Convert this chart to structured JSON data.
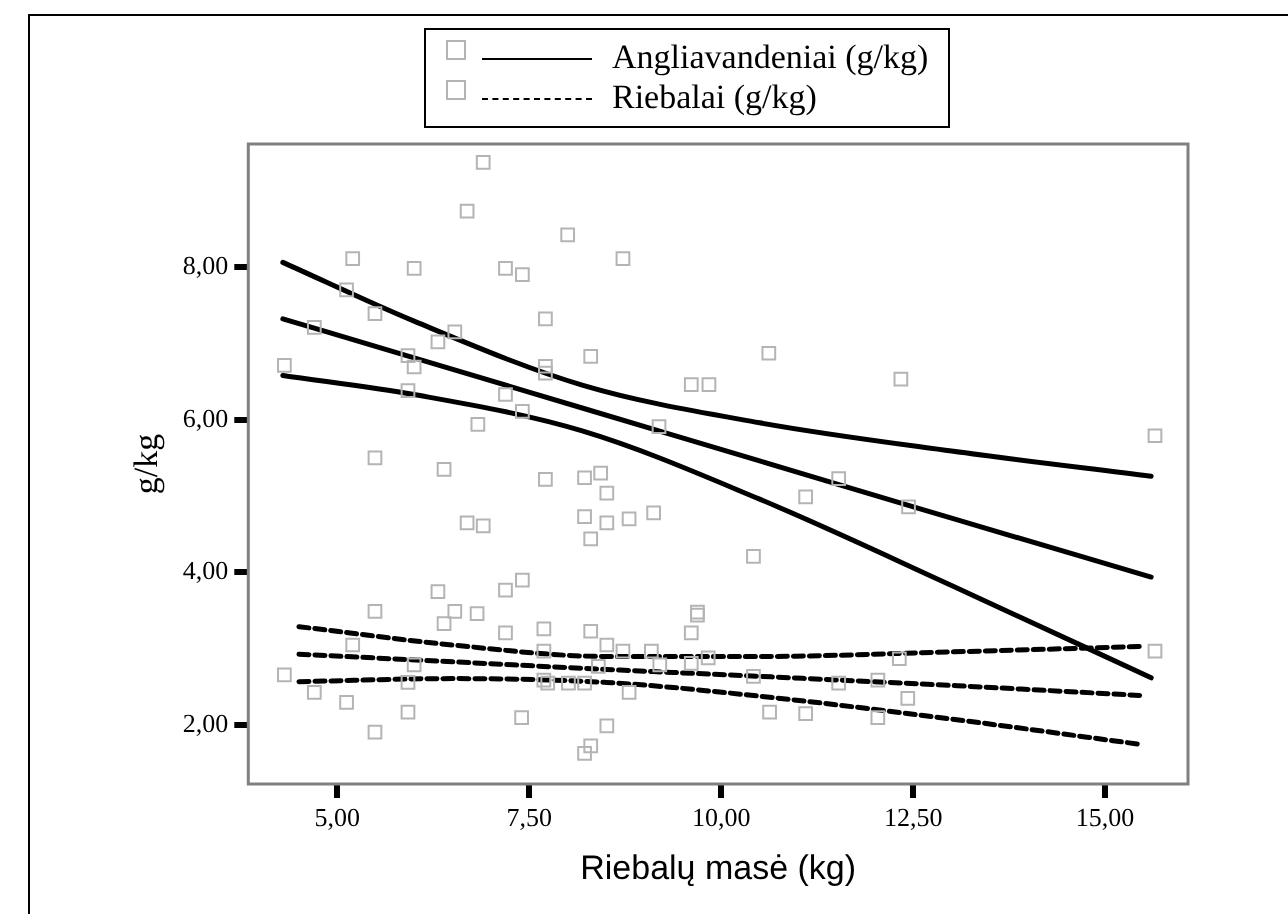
{
  "chart_data": {
    "type": "scatter",
    "xlabel": "Riebalų masė (kg)",
    "ylabel": "g/kg",
    "xlim": [
      3.84,
      16.08
    ],
    "ylim": [
      1.23,
      9.61
    ],
    "xticks": [
      {
        "value": 5,
        "label": "5,00"
      },
      {
        "value": 7.5,
        "label": "7,50"
      },
      {
        "value": 10,
        "label": "10,00"
      },
      {
        "value": 12.5,
        "label": "12,50"
      },
      {
        "value": 15,
        "label": "15,00"
      }
    ],
    "yticks": [
      {
        "value": 2,
        "label": "2,00"
      },
      {
        "value": 4,
        "label": "4,00"
      },
      {
        "value": 6,
        "label": "6,00"
      },
      {
        "value": 8,
        "label": "8,00"
      }
    ],
    "grid": false,
    "legend": "top",
    "series": [
      {
        "type": "scatter",
        "marker": "square",
        "color": "#b4b4b4",
        "x": [
          6.9,
          6.69,
          8.0,
          5.2,
          6.0,
          7.19,
          7.41,
          8.72,
          5.12,
          4.7,
          5.49,
          6.53,
          6.31,
          7.71,
          4.31,
          5.92,
          6.0,
          8.3,
          7.71,
          7.71,
          10.62,
          9.61,
          9.84,
          5.92,
          7.19,
          7.41,
          6.83,
          9.19,
          5.49,
          6.39,
          7.71,
          8.22,
          8.43,
          8.51,
          8.22,
          8.51,
          8.8,
          9.12,
          6.69,
          6.9,
          12.34,
          15.65,
          11.53,
          11.1,
          12.44,
          8.3,
          10.42,
          6.31,
          7.19,
          7.41
        ],
        "values": [
          9.37,
          8.73,
          8.42,
          8.11,
          7.98,
          7.98,
          7.9,
          8.11,
          7.7,
          7.21,
          7.39,
          7.15,
          7.02,
          7.32,
          6.71,
          6.84,
          6.69,
          6.83,
          6.7,
          6.61,
          6.87,
          6.46,
          6.46,
          6.38,
          6.33,
          6.11,
          5.94,
          5.91,
          5.5,
          5.35,
          5.22,
          5.24,
          5.3,
          5.04,
          4.73,
          4.65,
          4.7,
          4.78,
          4.65,
          4.61,
          6.53,
          5.79,
          5.23,
          4.99,
          4.86,
          4.44,
          4.21,
          3.75,
          3.77,
          3.9
        ]
      },
      {
        "type": "line",
        "name": "Angliavandeniai (g/kg)",
        "color": "#000000",
        "line_style": "solid",
        "x": [
          4.29,
          6,
          8.2,
          10.5,
          13,
          15.6
        ],
        "values": [
          7.32,
          6.81,
          6.15,
          5.46,
          4.71,
          3.94
        ]
      },
      {
        "type": "line",
        "color": "#000000",
        "line_style": "solid",
        "x": [
          4.29,
          6,
          8.2,
          10.5,
          13,
          15.6
        ],
        "values": [
          8.06,
          7.29,
          6.45,
          5.96,
          5.59,
          5.26
        ]
      },
      {
        "type": "line",
        "color": "#000000",
        "line_style": "solid",
        "x": [
          4.29,
          6,
          8.2,
          10.5,
          13,
          15.6
        ],
        "values": [
          6.58,
          6.33,
          5.85,
          4.96,
          3.83,
          2.62
        ]
      },
      {
        "type": "scatter",
        "marker": "square",
        "color": "#b4b4b4",
        "x": [
          5.49,
          6.53,
          6.82,
          6.39,
          9.69,
          9.69,
          7.19,
          7.69,
          8.3,
          9.61,
          5.2,
          8.51,
          7.69,
          8.72,
          9.09,
          6.0,
          8.4,
          9.2,
          9.83,
          9.61,
          4.31,
          5.92,
          7.69,
          7.74,
          8.01,
          8.22,
          10.42,
          4.7,
          8.8,
          5.12,
          5.92,
          7.4,
          10.63,
          5.49,
          8.51,
          8.3,
          8.22,
          15.65,
          12.32,
          11.53,
          12.04,
          11.1,
          12.04,
          12.43
        ],
        "values": [
          3.49,
          3.49,
          3.46,
          3.33,
          3.48,
          3.44,
          3.21,
          3.26,
          3.23,
          3.21,
          3.05,
          3.05,
          2.97,
          2.97,
          2.97,
          2.79,
          2.77,
          2.79,
          2.88,
          2.81,
          2.66,
          2.56,
          2.59,
          2.55,
          2.55,
          2.55,
          2.64,
          2.43,
          2.43,
          2.3,
          2.17,
          2.1,
          2.17,
          1.91,
          1.99,
          1.73,
          1.63,
          2.97,
          2.87,
          2.55,
          2.59,
          2.15,
          2.1,
          2.35
        ]
      },
      {
        "type": "line",
        "name": "Riebalai (g/kg)",
        "color": "#000000",
        "line_style": "dashed",
        "x": [
          4.5,
          6.5,
          8.5,
          10.5,
          13,
          15.45
        ],
        "values": [
          2.93,
          2.83,
          2.73,
          2.64,
          2.52,
          2.39
        ]
      },
      {
        "type": "line",
        "color": "#000000",
        "line_style": "dashed",
        "x": [
          4.5,
          6.5,
          8.5,
          10.5,
          13,
          15.45
        ],
        "values": [
          3.29,
          3.05,
          2.9,
          2.9,
          2.96,
          3.03
        ]
      },
      {
        "type": "line",
        "color": "#000000",
        "line_style": "dashed",
        "x": [
          4.5,
          6.5,
          8.5,
          10.5,
          13,
          15.45
        ],
        "values": [
          2.57,
          2.61,
          2.56,
          2.38,
          2.08,
          1.75
        ]
      }
    ]
  }
}
